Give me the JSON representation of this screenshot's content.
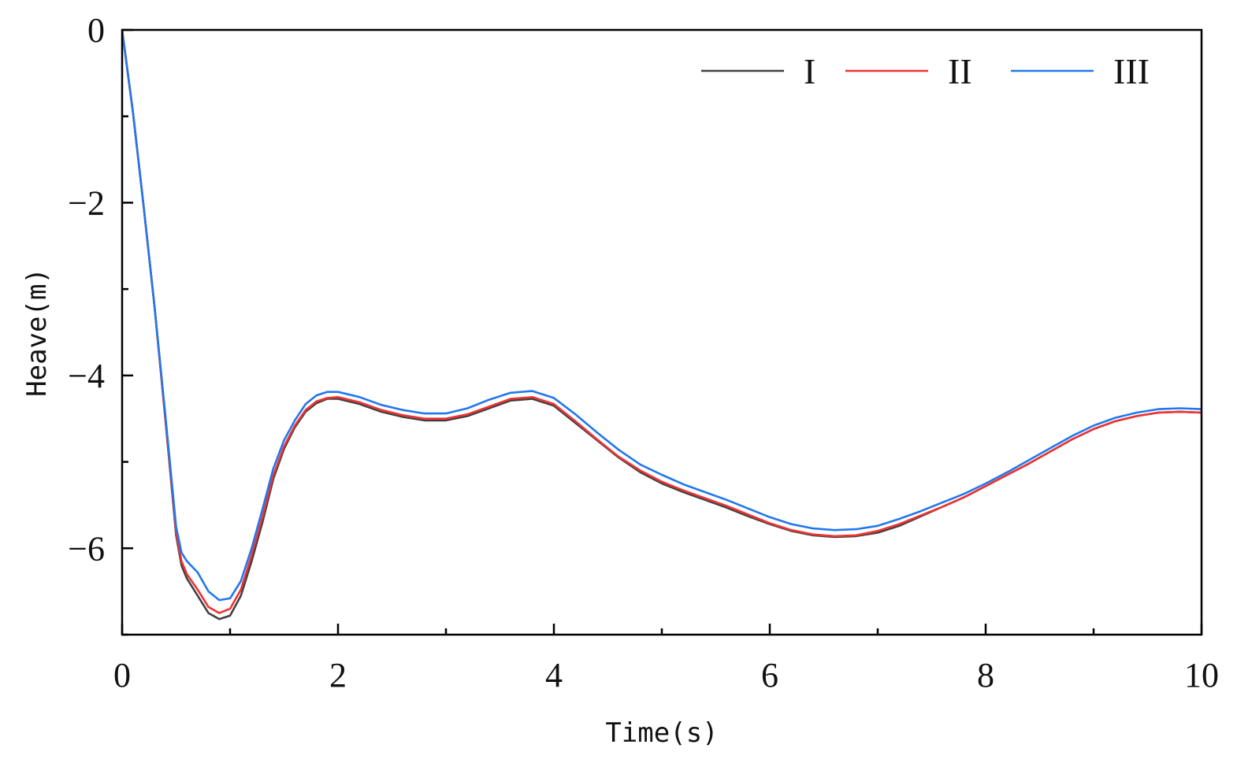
{
  "chart_data": {
    "type": "line",
    "xlabel": "Time(s)",
    "ylabel": "Heave(m)",
    "xlim": [
      0,
      10
    ],
    "ylim": [
      -7,
      0
    ],
    "xticks": [
      0,
      2,
      4,
      6,
      8,
      10
    ],
    "xtick_labels": [
      "0",
      "2",
      "4",
      "6",
      "8",
      "10"
    ],
    "yticks": [
      0,
      -2,
      -4,
      -6
    ],
    "ytick_labels": [
      "0",
      "−2",
      "−4",
      "−6"
    ],
    "grid": false,
    "legend_position": "top-right",
    "series": [
      {
        "name": "I",
        "color": "#404040",
        "x": [
          0,
          0.1,
          0.2,
          0.3,
          0.4,
          0.5,
          0.55,
          0.6,
          0.7,
          0.8,
          0.9,
          1.0,
          1.1,
          1.2,
          1.3,
          1.4,
          1.5,
          1.6,
          1.7,
          1.8,
          1.9,
          2.0,
          2.2,
          2.4,
          2.6,
          2.8,
          3.0,
          3.2,
          3.4,
          3.6,
          3.8,
          4.0,
          4.2,
          4.4,
          4.6,
          4.8,
          5.0,
          5.2,
          5.4,
          5.6,
          5.8,
          6.0,
          6.2,
          6.4,
          6.6,
          6.8,
          7.0,
          7.2,
          7.4,
          7.6,
          7.8,
          8.0,
          8.2,
          8.4,
          8.6,
          8.8,
          9.0,
          9.2,
          9.4,
          9.6,
          9.8,
          10.0
        ],
        "y": [
          0,
          -0.95,
          -2.05,
          -3.2,
          -4.5,
          -5.85,
          -6.2,
          -6.35,
          -6.55,
          -6.75,
          -6.82,
          -6.78,
          -6.55,
          -6.15,
          -5.7,
          -5.2,
          -4.85,
          -4.6,
          -4.42,
          -4.32,
          -4.27,
          -4.27,
          -4.33,
          -4.42,
          -4.48,
          -4.52,
          -4.52,
          -4.47,
          -4.38,
          -4.29,
          -4.27,
          -4.35,
          -4.55,
          -4.75,
          -4.95,
          -5.12,
          -5.25,
          -5.35,
          -5.44,
          -5.53,
          -5.63,
          -5.72,
          -5.8,
          -5.85,
          -5.87,
          -5.86,
          -5.82,
          -5.74,
          -5.63,
          -5.52,
          -5.41,
          -5.28,
          -5.15,
          -5.02,
          -4.88,
          -4.74,
          -4.62,
          -4.53,
          -4.47,
          -4.43,
          -4.42,
          -4.43
        ]
      },
      {
        "name": "II",
        "color": "#ee3333",
        "x": [
          0,
          0.1,
          0.2,
          0.3,
          0.4,
          0.5,
          0.55,
          0.6,
          0.7,
          0.8,
          0.9,
          1.0,
          1.1,
          1.2,
          1.3,
          1.4,
          1.5,
          1.6,
          1.7,
          1.8,
          1.9,
          2.0,
          2.2,
          2.4,
          2.6,
          2.8,
          3.0,
          3.2,
          3.4,
          3.6,
          3.8,
          4.0,
          4.2,
          4.4,
          4.6,
          4.8,
          5.0,
          5.2,
          5.4,
          5.6,
          5.8,
          6.0,
          6.2,
          6.4,
          6.6,
          6.8,
          7.0,
          7.2,
          7.4,
          7.6,
          7.8,
          8.0,
          8.2,
          8.4,
          8.6,
          8.8,
          9.0,
          9.2,
          9.4,
          9.6,
          9.8,
          10.0
        ],
        "y": [
          0,
          -0.95,
          -2.05,
          -3.2,
          -4.5,
          -5.82,
          -6.15,
          -6.3,
          -6.48,
          -6.68,
          -6.75,
          -6.7,
          -6.48,
          -6.08,
          -5.64,
          -5.16,
          -4.82,
          -4.58,
          -4.4,
          -4.3,
          -4.26,
          -4.25,
          -4.31,
          -4.4,
          -4.46,
          -4.5,
          -4.5,
          -4.45,
          -4.36,
          -4.27,
          -4.25,
          -4.33,
          -4.53,
          -4.74,
          -4.94,
          -5.1,
          -5.23,
          -5.33,
          -5.42,
          -5.51,
          -5.61,
          -5.71,
          -5.79,
          -5.84,
          -5.86,
          -5.85,
          -5.8,
          -5.72,
          -5.62,
          -5.52,
          -5.41,
          -5.28,
          -5.15,
          -5.02,
          -4.88,
          -4.74,
          -4.62,
          -4.53,
          -4.47,
          -4.43,
          -4.42,
          -4.43
        ]
      },
      {
        "name": "III",
        "color": "#2277ee",
        "x": [
          0,
          0.1,
          0.2,
          0.3,
          0.4,
          0.5,
          0.55,
          0.6,
          0.7,
          0.8,
          0.9,
          1.0,
          1.1,
          1.2,
          1.3,
          1.4,
          1.5,
          1.6,
          1.7,
          1.8,
          1.9,
          2.0,
          2.2,
          2.4,
          2.6,
          2.8,
          3.0,
          3.2,
          3.4,
          3.6,
          3.8,
          4.0,
          4.2,
          4.4,
          4.6,
          4.8,
          5.0,
          5.2,
          5.4,
          5.6,
          5.8,
          6.0,
          6.2,
          6.4,
          6.6,
          6.8,
          7.0,
          7.2,
          7.4,
          7.6,
          7.8,
          8.0,
          8.2,
          8.4,
          8.6,
          8.8,
          9.0,
          9.2,
          9.4,
          9.6,
          9.8,
          10.0
        ],
        "y": [
          0,
          -0.95,
          -2.05,
          -3.2,
          -4.45,
          -5.75,
          -6.05,
          -6.15,
          -6.28,
          -6.5,
          -6.6,
          -6.58,
          -6.38,
          -6.0,
          -5.55,
          -5.08,
          -4.75,
          -4.52,
          -4.33,
          -4.23,
          -4.19,
          -4.19,
          -4.25,
          -4.34,
          -4.4,
          -4.44,
          -4.44,
          -4.38,
          -4.28,
          -4.2,
          -4.18,
          -4.26,
          -4.45,
          -4.66,
          -4.86,
          -5.03,
          -5.15,
          -5.26,
          -5.35,
          -5.44,
          -5.54,
          -5.64,
          -5.72,
          -5.77,
          -5.79,
          -5.78,
          -5.74,
          -5.66,
          -5.57,
          -5.47,
          -5.37,
          -5.25,
          -5.12,
          -4.98,
          -4.84,
          -4.7,
          -4.58,
          -4.49,
          -4.43,
          -4.39,
          -4.38,
          -4.39
        ]
      }
    ]
  }
}
